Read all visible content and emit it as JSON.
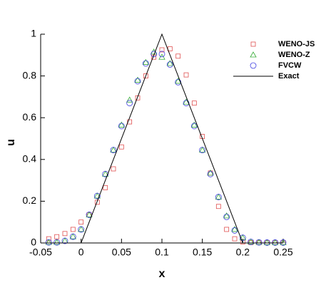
{
  "chart_data": {
    "type": "scatter",
    "x_label": "x",
    "y_label": "u",
    "x": [
      -0.04,
      -0.03,
      -0.02,
      -0.01,
      0,
      0.01,
      0.02,
      0.03,
      0.04,
      0.05,
      0.06,
      0.07,
      0.08,
      0.09,
      0.1,
      0.11,
      0.12,
      0.13,
      0.14,
      0.15,
      0.16,
      0.17,
      0.18,
      0.19,
      0.2,
      0.21,
      0.22,
      0.23,
      0.24,
      0.25
    ],
    "series": [
      {
        "name": "WENO-JS",
        "color": "#e05050",
        "marker": "square",
        "values": [
          0.02,
          0.03,
          0.045,
          0.065,
          0.1,
          0.135,
          0.195,
          0.265,
          0.355,
          0.46,
          0.58,
          0.695,
          0.8,
          0.89,
          0.925,
          0.93,
          0.895,
          0.805,
          0.67,
          0.51,
          0.335,
          0.175,
          0.065,
          0.02,
          0.005,
          0.002,
          0.002,
          0.002,
          0.002,
          0.002
        ]
      },
      {
        "name": "WENO-Z",
        "color": "#33aa33",
        "marker": "triangle",
        "values": [
          0.003,
          0.003,
          0.01,
          0.03,
          0.065,
          0.135,
          0.225,
          0.33,
          0.445,
          0.565,
          0.685,
          0.78,
          0.865,
          0.915,
          0.89,
          0.86,
          0.775,
          0.675,
          0.565,
          0.445,
          0.335,
          0.22,
          0.13,
          0.065,
          0.025,
          0.005,
          0.003,
          0.002,
          0.002,
          0.002
        ]
      },
      {
        "name": "FVCW",
        "color": "#4040e0",
        "marker": "circle",
        "values": [
          0.003,
          0.003,
          0.01,
          0.03,
          0.065,
          0.135,
          0.225,
          0.33,
          0.445,
          0.56,
          0.67,
          0.775,
          0.86,
          0.905,
          0.905,
          0.855,
          0.77,
          0.67,
          0.56,
          0.445,
          0.33,
          0.22,
          0.125,
          0.06,
          0.025,
          0.005,
          0.003,
          0.002,
          0.002,
          0.002
        ]
      },
      {
        "name": "Exact",
        "color": "#000000",
        "marker": "line",
        "x": [
          -0.05,
          0,
          0.1,
          0.2,
          0.25
        ],
        "values": [
          0,
          0,
          1,
          0,
          0
        ]
      }
    ],
    "xlim": [
      -0.05,
      0.25
    ],
    "xticks": [
      -0.05,
      0,
      0.05,
      0.1,
      0.15,
      0.2,
      0.25
    ],
    "ylim": [
      0,
      1
    ],
    "yticks": [
      0,
      0.2,
      0.4,
      0.6,
      0.8,
      1
    ],
    "legend": "top-right"
  }
}
